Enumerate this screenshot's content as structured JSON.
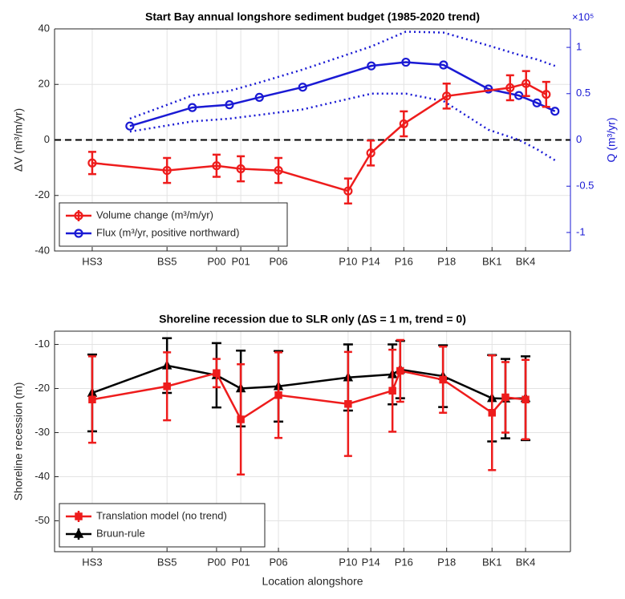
{
  "chart_data": [
    {
      "type": "line",
      "title": "Start Bay annual longshore sediment budget (1985-2020 trend)",
      "y_label": "ΔV (m³/m/yr)",
      "y2_label": "Q (m³/yr)",
      "y2_exponent": "×10⁵",
      "xlim": [
        0,
        100
      ],
      "xticks": [
        {
          "value": 7.3,
          "label": "HS3"
        },
        {
          "value": 21.8,
          "label": "BS5"
        },
        {
          "value": 31.4,
          "label": "P00"
        },
        {
          "value": 36.1,
          "label": "P01"
        },
        {
          "value": 43.4,
          "label": "P06"
        },
        {
          "value": 56.9,
          "label": "P10"
        },
        {
          "value": 61.3,
          "label": "P14"
        },
        {
          "value": 67.7,
          "label": "P16"
        },
        {
          "value": 76.0,
          "label": "P18"
        },
        {
          "value": 84.8,
          "label": "BK1"
        },
        {
          "value": 91.3,
          "label": "BK4"
        }
      ],
      "ylim": [
        -40,
        40
      ],
      "yticks": [
        -40,
        -20,
        0,
        20,
        40
      ],
      "y2lim": [
        -1.2,
        1.2
      ],
      "y2ticks": [
        -1,
        -0.5,
        0,
        0.5,
        1
      ],
      "y2_color": "#1a1ad4",
      "hline": 0,
      "grid": true,
      "legend": "lower left",
      "series": [
        {
          "name": "Volume change (m³/m/yr)",
          "color": "#ee1c1c",
          "marker": "o",
          "x": [
            7.3,
            21.8,
            31.4,
            36.1,
            43.4,
            56.9,
            61.3,
            67.7,
            76.0,
            88.3,
            91.4,
            95.3
          ],
          "values": [
            -8.3,
            -11,
            -9.3,
            -10.4,
            -11,
            -18.4,
            -4.7,
            5.8,
            15.8,
            18.8,
            20.3,
            16.4
          ],
          "errors": [
            4,
            4.5,
            4,
            4.5,
            4.5,
            4.5,
            4.5,
            4.5,
            4.5,
            4.5,
            4.5,
            4.5
          ]
        },
        {
          "name": "Flux (m³/yr, positive northward)",
          "color": "#1a1ad4",
          "marker": "o",
          "axis": "y2",
          "x": [
            14.6,
            26.7,
            33.9,
            39.7,
            48.1,
            61.4,
            68.1,
            75.4,
            84.1,
            90.0,
            93.5,
            97.0
          ],
          "values": [
            0.15,
            0.35,
            0.38,
            0.46,
            0.57,
            0.8,
            0.84,
            0.81,
            0.55,
            0.48,
            0.4,
            0.31
          ],
          "upper": [
            0.23,
            0.48,
            0.53,
            0.62,
            0.76,
            1.01,
            1.17,
            1.16,
            1.02,
            0.92,
            0.87,
            0.8
          ],
          "lower": [
            0.09,
            0.2,
            0.23,
            0.27,
            0.33,
            0.5,
            0.5,
            0.42,
            0.11,
            0.0,
            -0.1,
            -0.22
          ]
        }
      ]
    },
    {
      "type": "line",
      "title": "Shoreline recession due to SLR only (ΔS = 1 m, trend = 0)",
      "y_label": "Shoreline recession (m)",
      "x_label": "Location alongshore",
      "xlim": [
        0,
        100
      ],
      "xticks": [
        {
          "value": 7.3,
          "label": "HS3"
        },
        {
          "value": 21.8,
          "label": "BS5"
        },
        {
          "value": 31.4,
          "label": "P00"
        },
        {
          "value": 36.1,
          "label": "P01"
        },
        {
          "value": 43.4,
          "label": "P06"
        },
        {
          "value": 56.9,
          "label": "P10"
        },
        {
          "value": 61.3,
          "label": "P14"
        },
        {
          "value": 67.7,
          "label": "P16"
        },
        {
          "value": 76.0,
          "label": "P18"
        },
        {
          "value": 84.8,
          "label": "BK1"
        },
        {
          "value": 91.3,
          "label": "BK4"
        }
      ],
      "ylim": [
        -57,
        -7
      ],
      "yticks": [
        -50,
        -40,
        -30,
        -20,
        -10
      ],
      "grid": true,
      "legend": "lower left",
      "series": [
        {
          "name": "Translation model (no trend)",
          "color": "#ee1c1c",
          "marker": "s",
          "x": [
            7.3,
            21.8,
            31.4,
            36.1,
            43.4,
            56.9,
            65.5,
            67.0,
            75.3,
            84.8,
            87.4,
            91.3
          ],
          "values": [
            -22.5,
            -19.5,
            -16.5,
            -27,
            -21.5,
            -23.5,
            -20.5,
            -16,
            -18,
            -25.5,
            -22,
            -22.5
          ],
          "errors": [
            9.8,
            7.7,
            3.2,
            12.5,
            9.7,
            11.8,
            9.3,
            7,
            7.5,
            13,
            8,
            9
          ]
        },
        {
          "name": "Bruun-rule",
          "color": "#000000",
          "marker": "^",
          "x": [
            7.3,
            21.8,
            31.4,
            36.1,
            43.4,
            56.9,
            65.5,
            67.0,
            75.3,
            84.8,
            87.4,
            91.3
          ],
          "values": [
            -21,
            -14.8,
            -17,
            -20,
            -19.5,
            -17.5,
            -16.8,
            -15.7,
            -17.2,
            -22.2,
            -22.3,
            -22.2
          ],
          "errors": [
            8.7,
            6.2,
            7.3,
            8.6,
            8,
            7.5,
            6.8,
            6.5,
            7,
            9.8,
            9,
            9.5
          ]
        }
      ]
    }
  ]
}
